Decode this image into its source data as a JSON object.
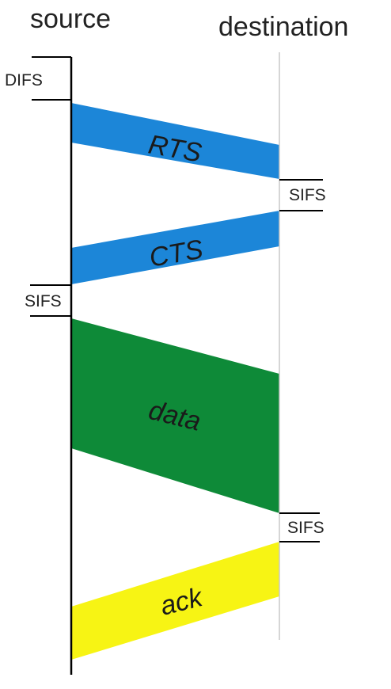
{
  "headers": {
    "source": "source",
    "destination": "destination"
  },
  "timings": {
    "difs": "DIFS",
    "sifs_after_rts": "SIFS",
    "sifs_after_cts": "SIFS",
    "sifs_after_data": "SIFS"
  },
  "frames": {
    "rts": {
      "label": "RTS",
      "color": "#1c86d8"
    },
    "cts": {
      "label": "CTS",
      "color": "#1c86d8"
    },
    "data": {
      "label": "data",
      "color": "#0e8a38"
    },
    "ack": {
      "label": "ack",
      "color": "#f7f414"
    }
  },
  "colors": {
    "source_line": "#000000",
    "destination_line": "#c8c8c8"
  }
}
